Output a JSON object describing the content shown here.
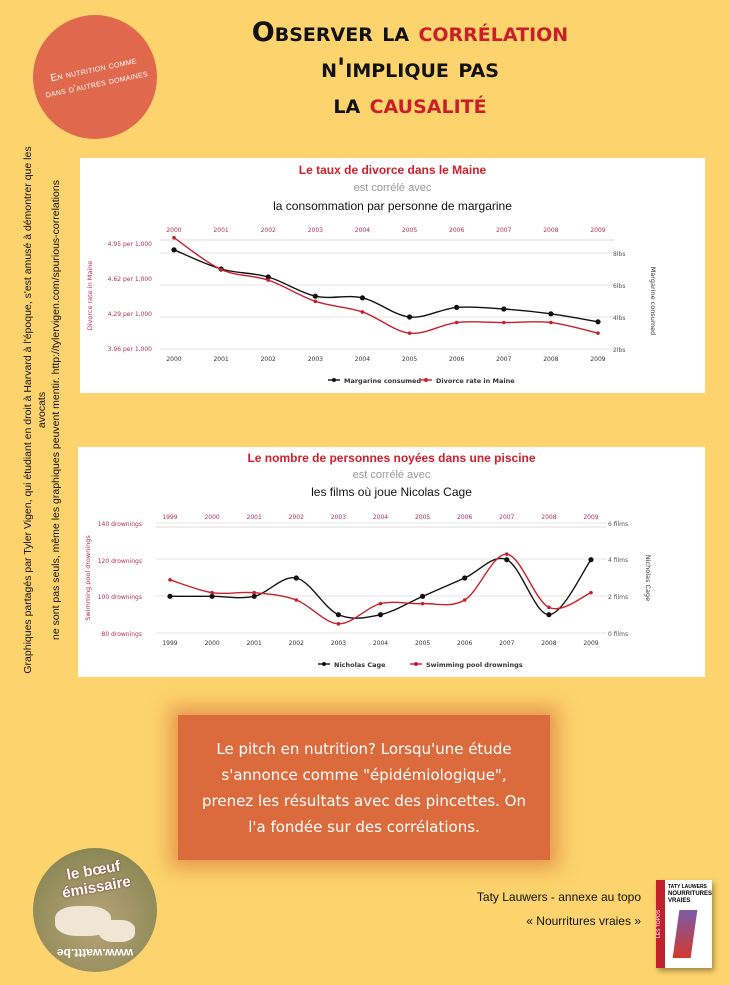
{
  "badge": {
    "line1": "En nutrition comme",
    "line2": "dans d'autres domaines"
  },
  "title": {
    "line1_a": "Observer la ",
    "line1_b": "corrélation",
    "line2": "n'implique pas",
    "line3_a": "la ",
    "line3_b": "causalité"
  },
  "side_note": {
    "line1": "Graphiques partagés par Tyler Vigen, qui étudiant en droit à Harvard à l'époque, s'est amusé à démontrer que les avocats",
    "line2": "ne sont pas seuls, même les graphiques peuvent mentir.  http://tylervigen.com/spurious-correlations"
  },
  "chart_data": [
    {
      "type": "line",
      "title": "Le taux de divorce dans le Maine",
      "subtitle": "est corrélé avec",
      "title2": "la consommation par personne de margarine",
      "x": [
        "2000",
        "2001",
        "2002",
        "2003",
        "2004",
        "2005",
        "2006",
        "2007",
        "2008",
        "2009"
      ],
      "ylabel_left": "Divorce rate in Maine",
      "yticks_left": [
        "4.95 per 1,000",
        "4.62 per 1,000",
        "4.29 per 1,000",
        "3.96 per 1,000"
      ],
      "ylim_left": [
        3.96,
        4.95
      ],
      "ylabel_right": "Margarine consumed",
      "yticks_right": [
        "8lbs",
        "6lbs",
        "4lbs",
        "2lbs"
      ],
      "ylim_right": [
        2,
        8
      ],
      "series": [
        {
          "name": "Margarine consumed",
          "axis": "right",
          "color": "#111111",
          "values": [
            8.2,
            7.0,
            6.5,
            5.3,
            5.2,
            4.0,
            4.6,
            4.5,
            4.2,
            3.7
          ]
        },
        {
          "name": "Divorce rate in Maine",
          "axis": "left",
          "color": "#c8202a",
          "values": [
            5.0,
            4.7,
            4.6,
            4.4,
            4.3,
            4.1,
            4.2,
            4.2,
            4.2,
            4.1
          ]
        }
      ],
      "credit": "tylervigen.com",
      "legend": "bottom"
    },
    {
      "type": "line",
      "title": "Le nombre de personnes noyées dans une piscine",
      "subtitle": "est corrélé avec",
      "title2": "les films où joue Nicolas Cage",
      "x": [
        "1999",
        "2000",
        "2001",
        "2002",
        "2003",
        "2004",
        "2005",
        "2006",
        "2007",
        "2008",
        "2009"
      ],
      "ylabel_left": "Swimming pool drownings",
      "yticks_left": [
        "140 drownings",
        "120 drownings",
        "100 drownings",
        "80 drownings"
      ],
      "ylim_left": [
        80,
        140
      ],
      "ylabel_right": "Nicholas Cage",
      "yticks_right": [
        "6 films",
        "4 films",
        "2 films",
        "0 films"
      ],
      "ylim_right": [
        0,
        6
      ],
      "series": [
        {
          "name": "Nicholas Cage",
          "axis": "right",
          "color": "#111111",
          "values": [
            2,
            2,
            2,
            3,
            1,
            1,
            2,
            3,
            4,
            1,
            4
          ]
        },
        {
          "name": "Swimming pool drownings",
          "axis": "left",
          "color": "#c8202a",
          "values": [
            109,
            102,
            102,
            98,
            85,
            96,
            96,
            98,
            123,
            94,
            102
          ]
        }
      ],
      "credit": "tylervigen.com",
      "legend": "bottom"
    }
  ],
  "pitch": {
    "text": "Le pitch en nutrition? Lorsqu'une étude s'annonce comme \"épidémiologique\", prenez les résultats avec des pincettes. On l'a fondée sur des corrélations."
  },
  "logo": {
    "top": "le bœuf émissaire",
    "bottom": "www.wattt.be"
  },
  "credit": {
    "line1": "Taty Lauwers - annexe au topo",
    "line2": "« Nourritures vraies »"
  },
  "book": {
    "series": "LES TOPOS",
    "author": "TATY LAUWERS",
    "title": "NOURRITURES VRAIES"
  },
  "colors": {
    "background": "#fcd36c",
    "accent": "#c8202a",
    "badge": "#e0694d",
    "pitch": "#db6a3c"
  }
}
